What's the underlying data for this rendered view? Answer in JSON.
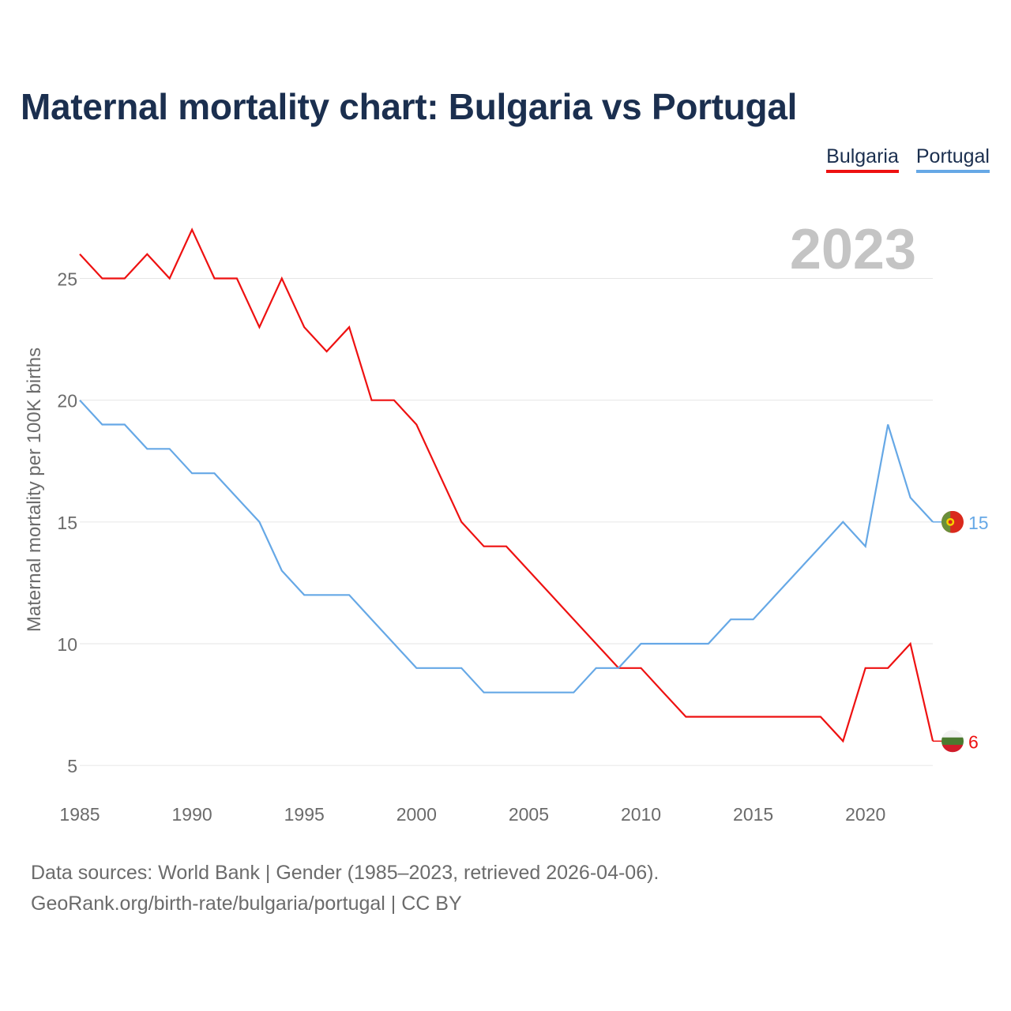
{
  "title": "Maternal mortality chart: Bulgaria vs Portugal",
  "chart_data": {
    "type": "line",
    "year_label": "2023",
    "ylabel": "Maternal mortality per 100K births",
    "xlabel": "",
    "xlim": [
      1985,
      2023
    ],
    "ylim": [
      4,
      28
    ],
    "x_ticks": [
      1985,
      1990,
      1995,
      2000,
      2005,
      2010,
      2015,
      2020
    ],
    "y_ticks": [
      5,
      10,
      15,
      20,
      25
    ],
    "x": [
      1985,
      1986,
      1987,
      1988,
      1989,
      1990,
      1991,
      1992,
      1993,
      1994,
      1995,
      1996,
      1997,
      1998,
      1999,
      2000,
      2001,
      2002,
      2003,
      2004,
      2005,
      2006,
      2007,
      2008,
      2009,
      2010,
      2011,
      2012,
      2013,
      2014,
      2015,
      2016,
      2017,
      2018,
      2019,
      2020,
      2021,
      2022,
      2023
    ],
    "series": [
      {
        "name": "Bulgaria",
        "color": "#ee1111",
        "flag": "bulgaria-flag",
        "end_label": "6",
        "values": [
          26,
          25,
          25,
          26,
          25,
          27,
          25,
          25,
          23,
          25,
          23,
          22,
          23,
          20,
          20,
          19,
          17,
          15,
          14,
          14,
          13,
          12,
          11,
          10,
          9,
          9,
          8,
          7,
          7,
          7,
          7,
          7,
          7,
          7,
          6,
          9,
          9,
          10,
          6
        ]
      },
      {
        "name": "Portugal",
        "color": "#66a8e6",
        "flag": "portugal-flag",
        "end_label": "15",
        "values": [
          20,
          19,
          19,
          18,
          18,
          17,
          17,
          16,
          15,
          13,
          12,
          12,
          12,
          11,
          10,
          9,
          9,
          9,
          8,
          8,
          8,
          8,
          8,
          9,
          9,
          10,
          10,
          10,
          10,
          11,
          11,
          12,
          13,
          14,
          15,
          14,
          19,
          16,
          15
        ]
      }
    ],
    "legend_position": "top-right",
    "grid": true
  },
  "footer": {
    "line1": "Data sources: World Bank | Gender (1985–2023, retrieved 2026-04-06).",
    "line2": "GeoRank.org/birth-rate/bulgaria/portugal | CC BY"
  }
}
